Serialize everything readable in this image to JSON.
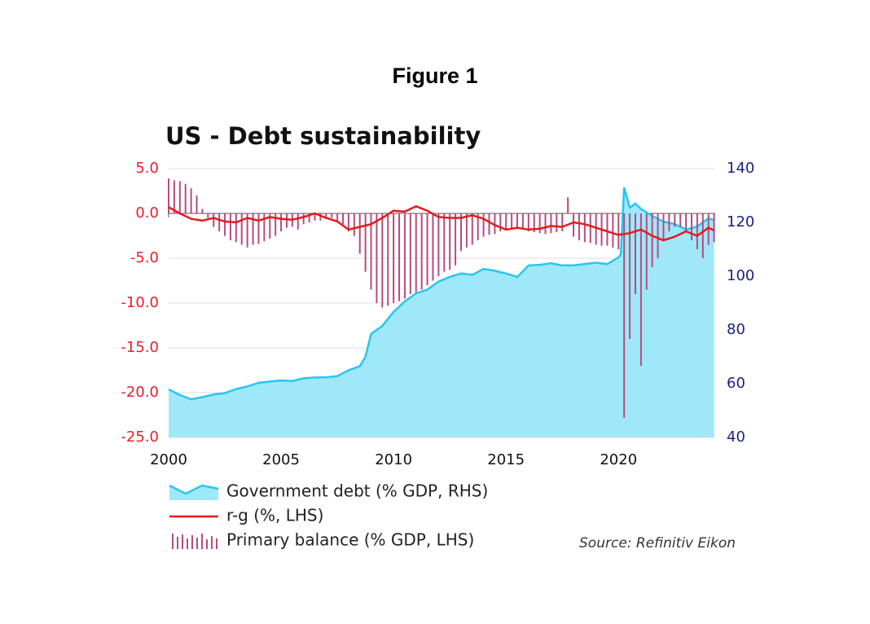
{
  "figure_title": "Figure 1",
  "source": "Source: Refinitiv Eikon",
  "chart_data": {
    "type": "combo",
    "title": "US - Debt sustainability",
    "xlim": [
      2000,
      2024.3
    ],
    "xticks": [
      2000,
      2005,
      2010,
      2015,
      2020
    ],
    "ylim": [
      -25,
      5
    ],
    "yticks": [
      {
        "value": 5,
        "label": "5.0"
      },
      {
        "value": 0,
        "label": "0.0"
      },
      {
        "value": -5,
        "label": "-5.0"
      },
      {
        "value": -10,
        "label": "-10.0"
      },
      {
        "value": -15,
        "label": "-15.0"
      },
      {
        "value": -20,
        "label": "-20.0"
      },
      {
        "value": -25,
        "label": "-25.0"
      }
    ],
    "y2lim": [
      40,
      140
    ],
    "y2ticks": [
      40,
      60,
      80,
      100,
      120,
      140
    ],
    "grid": true,
    "series": [
      {
        "name": "Government debt (% GDP, RHS)",
        "type": "area",
        "axis": "y2",
        "color": "#29c5ef",
        "fill": "#9ee8fa",
        "x": [
          2000,
          2000.5,
          2001,
          2001.5,
          2002,
          2002.5,
          2003,
          2003.5,
          2004,
          2004.5,
          2005,
          2005.5,
          2006,
          2006.5,
          2007,
          2007.5,
          2008,
          2008.5,
          2008.75,
          2009,
          2009.5,
          2010,
          2010.5,
          2011,
          2011.5,
          2012,
          2012.5,
          2013,
          2013.5,
          2014,
          2014.5,
          2015,
          2015.5,
          2016,
          2016.5,
          2017,
          2017.5,
          2018,
          2018.5,
          2019,
          2019.5,
          2020,
          2020.1,
          2020.25,
          2020.5,
          2020.75,
          2021,
          2021.5,
          2022,
          2022.5,
          2023,
          2023.5,
          2024,
          2024.25
        ],
        "values": [
          57.9,
          55.8,
          54.2,
          55.0,
          56,
          56.5,
          58,
          59,
          60.3,
          60.8,
          61.2,
          61.0,
          62,
          62.3,
          62.4,
          62.8,
          65,
          66.5,
          70,
          78.5,
          81.5,
          86.7,
          90.6,
          93.6,
          95,
          98,
          99.7,
          101,
          100.5,
          102.7,
          102,
          101,
          99.7,
          104,
          104.2,
          104.8,
          104,
          104,
          104.5,
          105,
          104.5,
          107,
          108,
          133,
          125.5,
          127,
          125,
          122.4,
          120.3,
          119.4,
          117.3,
          118.5,
          121.5,
          120.8
        ]
      },
      {
        "name": "r-g (%, LHS)",
        "type": "line",
        "color": "#e41a1c",
        "x": [
          2000,
          2000.5,
          2001,
          2001.5,
          2002,
          2002.5,
          2003,
          2003.5,
          2004,
          2004.5,
          2005,
          2005.5,
          2006,
          2006.5,
          2007,
          2007.5,
          2008,
          2008.5,
          2009,
          2009.5,
          2010,
          2010.5,
          2011,
          2011.5,
          2012,
          2012.5,
          2013,
          2013.5,
          2014,
          2014.5,
          2015,
          2015.5,
          2016,
          2016.5,
          2017,
          2017.5,
          2018,
          2018.5,
          2019,
          2019.5,
          2020,
          2020.5,
          2021,
          2021.5,
          2022,
          2022.5,
          2023,
          2023.5,
          2024,
          2024.25
        ],
        "values": [
          0.7,
          0,
          -0.6,
          -0.8,
          -0.5,
          -0.9,
          -1,
          -0.5,
          -0.8,
          -0.4,
          -0.6,
          -0.7,
          -0.4,
          0,
          -0.5,
          -0.9,
          -1.8,
          -1.5,
          -1.2,
          -0.5,
          0.3,
          0.2,
          0.8,
          0.3,
          -0.4,
          -0.5,
          -0.5,
          -0.2,
          -0.6,
          -1.3,
          -1.8,
          -1.6,
          -1.8,
          -1.7,
          -1.4,
          -1.5,
          -1,
          -1.2,
          -1.6,
          -2,
          -2.4,
          -2.2,
          -1.8,
          -2.5,
          -3,
          -2.6,
          -2,
          -2.5,
          -1.6,
          -1.9
        ]
      },
      {
        "name": "Primary balance (% GDP, LHS)",
        "type": "bar",
        "color": "#b84c7d",
        "x": [
          2000,
          2000.25,
          2000.5,
          2000.75,
          2001,
          2001.25,
          2001.5,
          2001.75,
          2002,
          2002.25,
          2002.5,
          2002.75,
          2003,
          2003.25,
          2003.5,
          2003.75,
          2004,
          2004.25,
          2004.5,
          2004.75,
          2005,
          2005.25,
          2005.5,
          2005.75,
          2006,
          2006.25,
          2006.5,
          2006.75,
          2007,
          2007.25,
          2007.5,
          2007.75,
          2008,
          2008.25,
          2008.5,
          2008.75,
          2009,
          2009.25,
          2009.5,
          2009.75,
          2010,
          2010.25,
          2010.5,
          2010.75,
          2011,
          2011.25,
          2011.5,
          2011.75,
          2012,
          2012.25,
          2012.5,
          2012.75,
          2013,
          2013.25,
          2013.5,
          2013.75,
          2014,
          2014.25,
          2014.5,
          2014.75,
          2015,
          2015.25,
          2015.5,
          2015.75,
          2016,
          2016.25,
          2016.5,
          2016.75,
          2017,
          2017.25,
          2017.5,
          2017.75,
          2018,
          2018.25,
          2018.5,
          2018.75,
          2019,
          2019.25,
          2019.5,
          2019.75,
          2020,
          2020.25,
          2020.5,
          2020.75,
          2021,
          2021.25,
          2021.5,
          2021.75,
          2022,
          2022.25,
          2022.5,
          2022.75,
          2023,
          2023.25,
          2023.5,
          2023.75,
          2024,
          2024.25
        ],
        "values": [
          3.9,
          3.7,
          3.6,
          3.3,
          2.8,
          2.0,
          0.5,
          -0.5,
          -1.5,
          -2,
          -2.5,
          -3,
          -3.2,
          -3.5,
          -3.8,
          -3.5,
          -3.4,
          -3.1,
          -2.8,
          -2.5,
          -2,
          -1.6,
          -1.5,
          -1.8,
          -1.2,
          -1,
          -0.8,
          -0.8,
          -0.6,
          -0.5,
          -0.8,
          -1.2,
          -2,
          -2.5,
          -4.5,
          -6.5,
          -8.5,
          -10,
          -10.5,
          -10.3,
          -10,
          -9.8,
          -9.5,
          -9,
          -8.8,
          -8.5,
          -8,
          -7.5,
          -7,
          -6.5,
          -6.3,
          -5.8,
          -4.2,
          -3.8,
          -3.5,
          -3,
          -2.6,
          -2.4,
          -2.3,
          -2,
          -1.8,
          -1.7,
          -1.6,
          -1.8,
          -2,
          -2.1,
          -2.2,
          -2.3,
          -2.2,
          -2.1,
          -2,
          1.8,
          -2.6,
          -3,
          -3.2,
          -3.3,
          -3.5,
          -3.6,
          -3.6,
          -3.8,
          -4,
          -22.8,
          -14,
          -9,
          -17,
          -8.5,
          -6,
          -5,
          -3,
          -2,
          -1.5,
          -1.5,
          -2,
          -3,
          -4,
          -5,
          -3.5,
          -3.2
        ]
      }
    ]
  }
}
